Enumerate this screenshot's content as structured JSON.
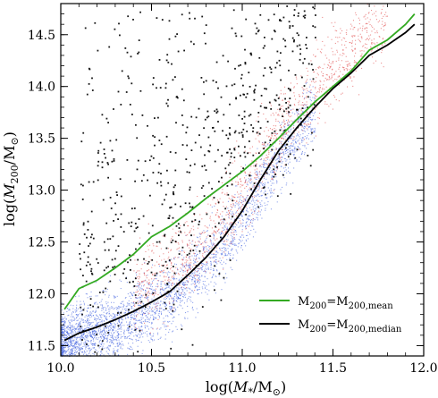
{
  "chart_data": {
    "type": "scatter",
    "title": "",
    "xlabel": "log(M*/M⊙)",
    "ylabel": "log(M200/M⊙)",
    "xlim": [
      10.0,
      12.0
    ],
    "ylim": [
      11.4,
      14.8
    ],
    "x_ticks": [
      10.0,
      10.5,
      11.0,
      11.5,
      12.0
    ],
    "x_tick_labels": [
      "10.0",
      "10.5",
      "11.0",
      "11.5",
      "12.0"
    ],
    "y_ticks": [
      11.5,
      12.0,
      12.5,
      13.0,
      13.5,
      14.0,
      14.5
    ],
    "y_tick_labels": [
      "11.5",
      "12.0",
      "12.5",
      "13.0",
      "13.5",
      "14.0",
      "14.5"
    ],
    "legend_position": "lower-right",
    "series": [
      {
        "name": "M200=M200,mean",
        "kind": "line",
        "color": "#33aa22",
        "x": [
          10.02,
          10.1,
          10.2,
          10.3,
          10.4,
          10.5,
          10.6,
          10.7,
          10.8,
          10.9,
          11.0,
          11.1,
          11.2,
          11.3,
          11.4,
          11.5,
          11.6,
          11.7,
          11.8,
          11.9,
          11.95
        ],
        "y": [
          11.85,
          12.05,
          12.13,
          12.25,
          12.38,
          12.55,
          12.65,
          12.78,
          12.92,
          13.05,
          13.18,
          13.33,
          13.5,
          13.68,
          13.85,
          14.0,
          14.15,
          14.35,
          14.45,
          14.6,
          14.7
        ]
      },
      {
        "name": "M200=M200,median",
        "kind": "line",
        "color": "#000000",
        "x": [
          10.02,
          10.1,
          10.2,
          10.3,
          10.4,
          10.5,
          10.6,
          10.7,
          10.8,
          10.9,
          11.0,
          11.1,
          11.2,
          11.3,
          11.4,
          11.5,
          11.6,
          11.7,
          11.8,
          11.9,
          11.95
        ],
        "y": [
          11.55,
          11.62,
          11.68,
          11.75,
          11.83,
          11.92,
          12.02,
          12.18,
          12.35,
          12.55,
          12.8,
          13.1,
          13.38,
          13.6,
          13.8,
          13.98,
          14.13,
          14.3,
          14.4,
          14.52,
          14.6
        ]
      }
    ],
    "scatter_populations": [
      {
        "color": "#3355dd",
        "count": 3400,
        "x_range": [
          10.0,
          11.4
        ],
        "median_offset": -0.05,
        "spread": 0.17
      },
      {
        "color": "#dd3333",
        "count": 1300,
        "x_range": [
          10.4,
          11.8
        ],
        "median_offset": 0.2,
        "spread": 0.2
      },
      {
        "color": "#000000",
        "count": 700,
        "x_range": [
          10.1,
          11.4
        ],
        "median_offset": 0.8,
        "spread": 0.55
      }
    ]
  }
}
